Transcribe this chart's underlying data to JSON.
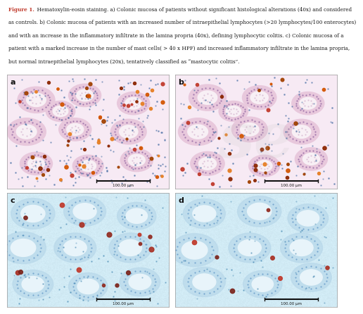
{
  "figure_title": "Figure 1.",
  "caption_text": " Hematoxylin-eosin staining. a) Colonic mucosa of patients without significant histological alterations (40x) and considered as controls. b) Colonic mucosa of patients with an increased number of intraepithelial lymphocytes (>20 lymphocytes/100 enterocytes) and with an increase in the inflammatory infiltrate in the lamina propria (40x), defining lymphocytic colitis. c) Colonic mucosa of a patient with a marked increase in the number of mast cells( > 40 x HPF) and increased inflammatory infiltrate in the lamina propria, but normal intraepithelial lymphocytes (20x), tentatively classified as “mastocytic colitis”.",
  "figure_title_color": "#c0392b",
  "caption_color": "#1a1a1a",
  "caption_fontsize": 5.2,
  "panel_labels": [
    "a",
    "b",
    "c",
    "d"
  ],
  "scale_bar_text": "100.00 μm",
  "background_color": "#ffffff",
  "watermark_text": "se",
  "watermark_color": "#bbbbbb",
  "he_bg": [
    0.97,
    0.92,
    0.96
  ],
  "ihc_bg": [
    0.82,
    0.92,
    0.96
  ],
  "he_crypt_outer": "#e8c8dc",
  "he_crypt_lumen": "#f8f0f5",
  "he_crypt_cell": "#9b6fa8",
  "ihc_crypt_outer": "#b8d8ea",
  "ihc_crypt_lumen": "#e8f4fa",
  "ihc_crypt_cell": "#3a7ab8",
  "he_cell_colors": [
    "#c0392b",
    "#e67e22",
    "#d35400",
    "#a04000",
    "#8b2500"
  ],
  "ihc_cell_colors": [
    "#c0392b",
    "#922b21",
    "#a93226",
    "#7b241c"
  ],
  "he_small_cell_color": "#4a6fa5",
  "ihc_small_cell_color": "#2471a3",
  "scale_bar_color": "#111111"
}
